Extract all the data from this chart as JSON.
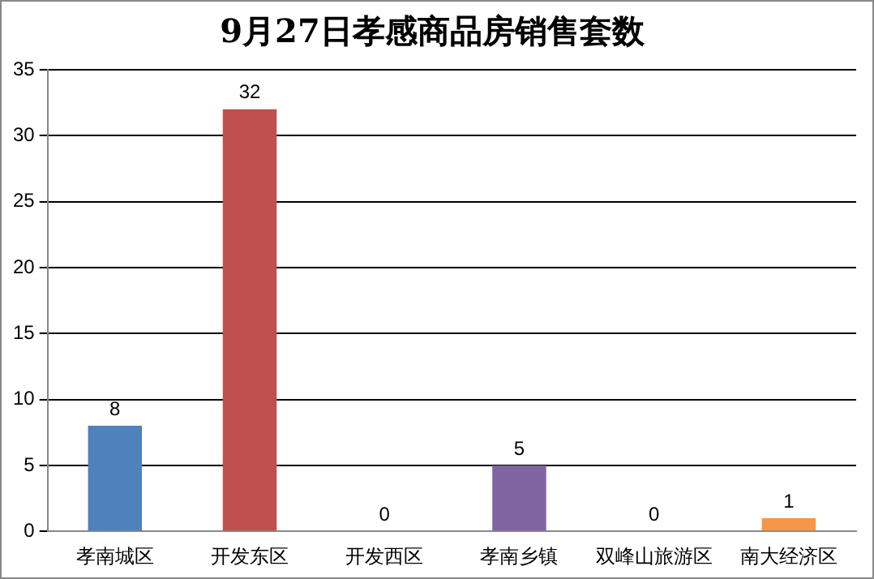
{
  "chart_data": {
    "type": "bar",
    "title": "9月27日孝感商品房销售套数",
    "categories": [
      "孝南城区",
      "开发东区",
      "开发西区",
      "孝南乡镇",
      "双峰山旅游区",
      "南大经济区"
    ],
    "values": [
      8,
      32,
      0,
      5,
      0,
      1
    ],
    "colors": [
      "#4f81bd",
      "#c0504d",
      "#9bbb59",
      "#8064a2",
      "#4bacc6",
      "#f79646"
    ],
    "ylim": [
      0,
      35
    ],
    "yticks": [
      0,
      5,
      10,
      15,
      20,
      25,
      30,
      35
    ],
    "grid": "y",
    "data_labels": true
  }
}
